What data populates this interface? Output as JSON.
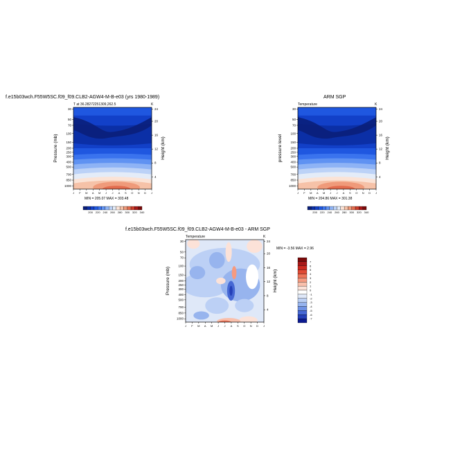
{
  "chart_data": [
    {
      "type": "heatmap",
      "title": "f.e15b03wch.F55W5SC.f09_f09.CLB2-AGW4-M-B-e03 (yrs 1980-1989)",
      "subtitle_left": "T at 36.28272251309,262.5",
      "subtitle_right": "K",
      "ylabel": "Pressure (mb)",
      "ylabel_right": "Height (km)",
      "x_ticks": [
        "J",
        "F",
        "M",
        "A",
        "M",
        "J",
        "J",
        "A",
        "S",
        "O",
        "N",
        "D",
        "J"
      ],
      "y_ticks": [
        "30",
        "50",
        "70",
        "100",
        "150",
        "200",
        "250",
        "300",
        "400",
        "500",
        "700",
        "850",
        "1000"
      ],
      "y_ticks_right": [
        "24",
        "20",
        "16",
        "12",
        "8",
        "4"
      ],
      "stats": "MIN = 205.07 MAX = 303.48",
      "colorbar_labels": [
        "200",
        "220",
        "240",
        "260",
        "280",
        "300",
        "320",
        "340"
      ]
    },
    {
      "type": "heatmap",
      "title": "ARM SGP",
      "subtitle_left": "Temperature",
      "subtitle_right": "K",
      "ylabel": "pressure level",
      "ylabel_right": "Height (km)",
      "x_ticks": [
        "J",
        "F",
        "M",
        "A",
        "M",
        "J",
        "J",
        "A",
        "S",
        "O",
        "N",
        "D",
        "J"
      ],
      "y_ticks": [
        "30",
        "50",
        "70",
        "100",
        "150",
        "200",
        "250",
        "300",
        "400",
        "500",
        "700",
        "850",
        "1000"
      ],
      "y_ticks_right": [
        "24",
        "20",
        "16",
        "12",
        "8",
        "4"
      ],
      "stats": "MIN = 204.86 MAX = 301.38",
      "colorbar_labels": [
        "200",
        "220",
        "240",
        "260",
        "280",
        "300",
        "320",
        "340"
      ]
    },
    {
      "type": "heatmap",
      "title": "f.e15b03wch.F55W5SC.f09_f09.CLB2-AGW4-M-B-e03 - ARM SGP",
      "subtitle_left": "Temperature",
      "subtitle_right": "K",
      "ylabel": "Pressure (mb)",
      "ylabel_right": "Height (km)",
      "x_ticks": [
        "J",
        "F",
        "M",
        "A",
        "M",
        "J",
        "J",
        "A",
        "S",
        "O",
        "N",
        "D",
        "J"
      ],
      "y_ticks": [
        "30",
        "50",
        "70",
        "100",
        "150",
        "200",
        "250",
        "300",
        "400",
        "500",
        "700",
        "850",
        "1000"
      ],
      "y_ticks_right": [
        "24",
        "20",
        "16",
        "12",
        "8",
        "4"
      ],
      "stats": "MIN = -3.56 MAX = 2.96",
      "colorbar_labels": [
        "7",
        "6",
        "5",
        "4",
        "3",
        "2",
        "1",
        "0",
        "-1",
        "-2",
        "-3",
        "-4",
        "-5",
        "-6",
        "-7"
      ]
    }
  ],
  "colors": {
    "abs_scale": [
      "#0a1f7a",
      "#0b2fa6",
      "#1240c8",
      "#1f57e0",
      "#3a73ee",
      "#5f92f2",
      "#8eb3f5",
      "#bcd2f7",
      "#e4ecf8",
      "#fbe3d6",
      "#f6c2a8",
      "#ef9a7a",
      "#e26c4e",
      "#cc3c2a",
      "#a81818",
      "#7a0a0a"
    ],
    "diff_scale": [
      "#7a0a0a",
      "#a81818",
      "#cc2a20",
      "#e04a34",
      "#ee7458",
      "#f59a80",
      "#f9c0ac",
      "#fce2d8",
      "#ffffff",
      "#dfe8f8",
      "#bcd0f5",
      "#97b4ee",
      "#6f92e4",
      "#4668d4",
      "#2440b8",
      "#0c1a90"
    ]
  }
}
